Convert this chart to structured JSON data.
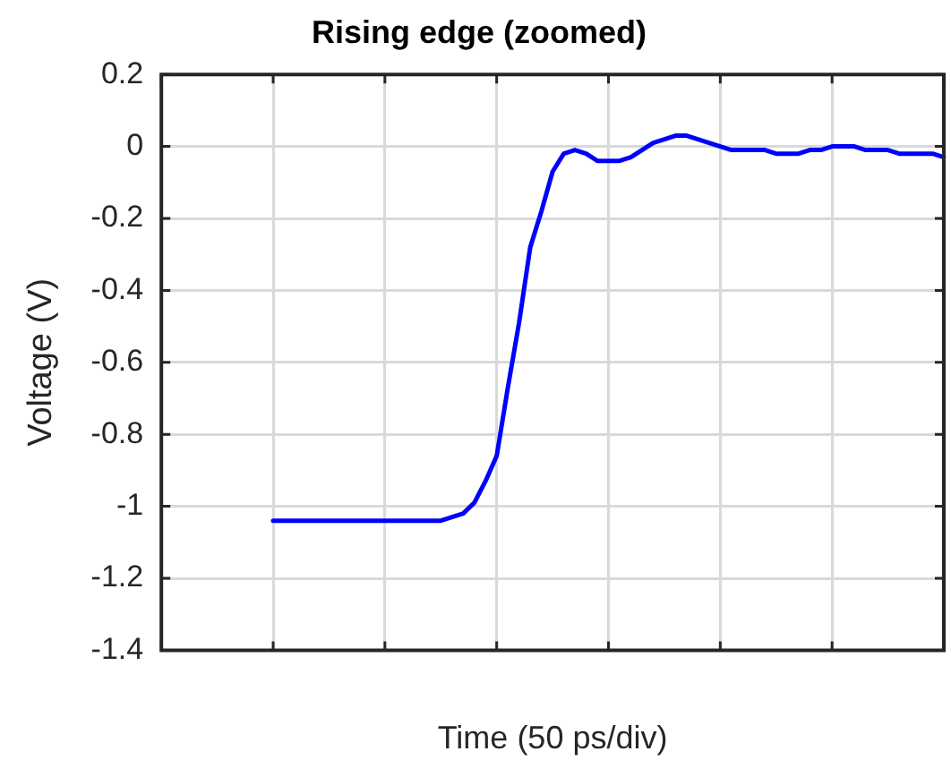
{
  "chart_data": {
    "type": "line",
    "title": "Rising edge (zoomed)",
    "xlabel": "Time (50 ps/div)",
    "ylabel": "Voltage (V)",
    "categories": [
      null,
      null,
      null,
      null,
      null,
      null,
      null,
      null,
      null,
      null,
      null,
      null,
      null,
      null,
      null,
      null,
      null,
      null,
      null,
      null,
      null,
      null,
      null,
      null,
      null,
      null,
      null,
      null,
      null,
      null,
      null,
      null,
      null,
      null,
      null,
      null,
      null,
      null,
      null,
      null,
      null,
      null,
      null,
      null,
      null,
      null,
      null,
      null,
      null,
      null,
      null,
      null,
      null,
      null,
      null,
      null,
      null,
      null,
      null,
      null,
      null,
      null,
      null,
      null,
      null,
      null,
      null,
      null,
      null,
      null,
      null
    ],
    "ylim": [
      -1.4,
      0.2
    ],
    "yticks": [
      -1.4,
      -1.2,
      -1,
      -0.8,
      -0.6,
      -0.4,
      -0.2,
      0,
      0.2
    ],
    "grid": true,
    "line_style": "solid",
    "series": [
      {
        "color": "#0000ff",
        "values": [
          null,
          null,
          null,
          null,
          null,
          null,
          null,
          null,
          null,
          null,
          -1.04,
          -1.04,
          -1.04,
          -1.04,
          -1.04,
          -1.04,
          -1.04,
          -1.04,
          -1.04,
          -1.04,
          -1.04,
          -1.04,
          -1.04,
          -1.04,
          -1.04,
          -1.04,
          -1.03,
          -1.02,
          -0.99,
          -0.93,
          -0.86,
          -0.67,
          -0.49,
          -0.28,
          -0.18,
          -0.07,
          -0.02,
          -0.01,
          -0.02,
          -0.04,
          -0.04,
          -0.04,
          -0.03,
          -0.01,
          0.01,
          0.02,
          0.03,
          0.03,
          0.02,
          0.01,
          0,
          -0.01,
          -0.01,
          -0.01,
          -0.01,
          -0.02,
          -0.02,
          -0.02,
          -0.01,
          -0.01,
          0,
          0,
          0,
          -0.01,
          -0.01,
          -0.01,
          -0.02,
          -0.02,
          -0.02,
          -0.02,
          -0.03
        ]
      }
    ]
  }
}
